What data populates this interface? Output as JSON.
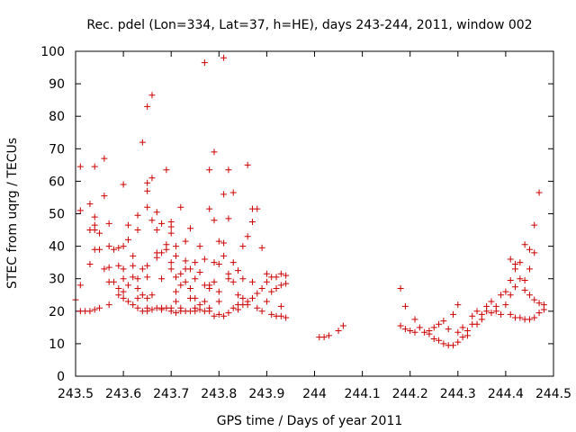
{
  "chart_data": {
    "type": "scatter",
    "title": "Rec. pdel (Lon=334, Lat=37, h=HE), days 243-244, 2011, window 002",
    "xlabel": "GPS time / Days of year 2011",
    "ylabel": "STEC from uqrg / TECUs",
    "xlim": [
      243.5,
      244.5
    ],
    "ylim": [
      0,
      100
    ],
    "xticks": [
      "243.5",
      "243.6",
      "243.7",
      "243.8",
      "243.9",
      "244",
      "244.1",
      "244.2",
      "244.3",
      "244.4",
      "244.5"
    ],
    "yticks": [
      "0",
      "10",
      "20",
      "30",
      "40",
      "50",
      "60",
      "70",
      "80",
      "90",
      "100"
    ],
    "grid": false,
    "legend": "none",
    "marker": "+",
    "color": "#cc0000",
    "series": [
      {
        "points": [
          [
            243.5,
            23.5
          ],
          [
            243.51,
            20
          ],
          [
            243.51,
            28
          ],
          [
            243.51,
            51
          ],
          [
            243.51,
            64.5
          ],
          [
            243.52,
            20
          ],
          [
            243.53,
            20
          ],
          [
            243.53,
            34.5
          ],
          [
            243.53,
            45
          ],
          [
            243.53,
            53
          ],
          [
            243.54,
            20.5
          ],
          [
            243.54,
            39
          ],
          [
            243.54,
            45
          ],
          [
            243.54,
            46.5
          ],
          [
            243.54,
            49
          ],
          [
            243.54,
            64.5
          ],
          [
            243.55,
            21
          ],
          [
            243.55,
            39
          ],
          [
            243.55,
            44
          ],
          [
            243.56,
            33
          ],
          [
            243.56,
            55.5
          ],
          [
            243.56,
            67
          ],
          [
            243.57,
            22
          ],
          [
            243.57,
            29
          ],
          [
            243.57,
            33.5
          ],
          [
            243.57,
            40
          ],
          [
            243.57,
            47
          ],
          [
            243.58,
            29
          ],
          [
            243.58,
            39
          ],
          [
            243.59,
            25
          ],
          [
            243.59,
            27
          ],
          [
            243.59,
            34
          ],
          [
            243.59,
            39.5
          ],
          [
            243.6,
            24
          ],
          [
            243.6,
            26
          ],
          [
            243.6,
            30
          ],
          [
            243.6,
            33
          ],
          [
            243.6,
            40
          ],
          [
            243.6,
            59
          ],
          [
            243.61,
            23
          ],
          [
            243.61,
            28
          ],
          [
            243.61,
            42
          ],
          [
            243.61,
            46.5
          ],
          [
            243.62,
            22
          ],
          [
            243.62,
            30.5
          ],
          [
            243.62,
            34
          ],
          [
            243.62,
            37
          ],
          [
            243.63,
            21
          ],
          [
            243.63,
            24
          ],
          [
            243.63,
            27
          ],
          [
            243.63,
            30
          ],
          [
            243.63,
            45
          ],
          [
            243.63,
            49.5
          ],
          [
            243.64,
            20
          ],
          [
            243.64,
            25
          ],
          [
            243.64,
            33
          ],
          [
            243.64,
            72
          ],
          [
            243.65,
            20
          ],
          [
            243.65,
            21
          ],
          [
            243.65,
            24
          ],
          [
            243.65,
            30.5
          ],
          [
            243.65,
            34
          ],
          [
            243.65,
            52
          ],
          [
            243.65,
            57
          ],
          [
            243.65,
            59.5
          ],
          [
            243.65,
            83
          ],
          [
            243.66,
            20.5
          ],
          [
            243.66,
            25
          ],
          [
            243.66,
            48
          ],
          [
            243.66,
            61
          ],
          [
            243.66,
            86.5
          ],
          [
            243.67,
            21
          ],
          [
            243.67,
            36.5
          ],
          [
            243.67,
            38
          ],
          [
            243.67,
            45
          ],
          [
            243.67,
            50.5
          ],
          [
            243.68,
            20.5
          ],
          [
            243.68,
            21
          ],
          [
            243.68,
            30
          ],
          [
            243.68,
            38
          ],
          [
            243.68,
            47
          ],
          [
            243.69,
            21
          ],
          [
            243.69,
            39
          ],
          [
            243.69,
            40.5
          ],
          [
            243.69,
            63.5
          ],
          [
            243.7,
            20
          ],
          [
            243.7,
            21
          ],
          [
            243.7,
            33
          ],
          [
            243.7,
            35
          ],
          [
            243.7,
            44
          ],
          [
            243.7,
            46
          ],
          [
            243.7,
            47.5
          ],
          [
            243.71,
            19.5
          ],
          [
            243.71,
            23
          ],
          [
            243.71,
            26
          ],
          [
            243.71,
            30.5
          ],
          [
            243.71,
            37
          ],
          [
            243.71,
            40
          ],
          [
            243.72,
            20
          ],
          [
            243.72,
            21
          ],
          [
            243.72,
            28
          ],
          [
            243.72,
            31.5
          ],
          [
            243.72,
            52
          ],
          [
            243.73,
            20
          ],
          [
            243.73,
            29
          ],
          [
            243.73,
            33
          ],
          [
            243.73,
            35.5
          ],
          [
            243.73,
            41.5
          ],
          [
            243.74,
            20
          ],
          [
            243.74,
            24
          ],
          [
            243.74,
            27
          ],
          [
            243.74,
            33
          ],
          [
            243.74,
            45.5
          ],
          [
            243.75,
            20
          ],
          [
            243.75,
            21
          ],
          [
            243.75,
            24
          ],
          [
            243.75,
            30
          ],
          [
            243.75,
            35
          ],
          [
            243.76,
            20.5
          ],
          [
            243.76,
            22
          ],
          [
            243.76,
            32
          ],
          [
            243.76,
            40
          ],
          [
            243.77,
            20
          ],
          [
            243.77,
            23
          ],
          [
            243.77,
            28
          ],
          [
            243.77,
            36
          ],
          [
            243.77,
            96.5
          ],
          [
            243.78,
            20
          ],
          [
            243.78,
            21
          ],
          [
            243.78,
            27
          ],
          [
            243.78,
            28
          ],
          [
            243.78,
            51.5
          ],
          [
            243.78,
            63.5
          ],
          [
            243.79,
            18.5
          ],
          [
            243.79,
            29
          ],
          [
            243.79,
            35
          ],
          [
            243.79,
            48
          ],
          [
            243.79,
            69
          ],
          [
            243.8,
            19
          ],
          [
            243.8,
            23
          ],
          [
            243.8,
            26
          ],
          [
            243.8,
            34.5
          ],
          [
            243.8,
            41.5
          ],
          [
            243.81,
            18.5
          ],
          [
            243.81,
            37
          ],
          [
            243.81,
            41
          ],
          [
            243.81,
            56
          ],
          [
            243.81,
            98
          ],
          [
            243.82,
            19.5
          ],
          [
            243.82,
            30
          ],
          [
            243.82,
            31.5
          ],
          [
            243.82,
            48.5
          ],
          [
            243.82,
            63.5
          ],
          [
            243.83,
            21
          ],
          [
            243.83,
            29
          ],
          [
            243.83,
            35
          ],
          [
            243.83,
            56.5
          ],
          [
            243.84,
            20.5
          ],
          [
            243.84,
            22
          ],
          [
            243.84,
            25
          ],
          [
            243.84,
            32.5
          ],
          [
            243.85,
            22
          ],
          [
            243.85,
            24
          ],
          [
            243.85,
            30
          ],
          [
            243.85,
            40
          ],
          [
            243.86,
            22
          ],
          [
            243.86,
            23
          ],
          [
            243.86,
            43
          ],
          [
            243.86,
            65
          ],
          [
            243.87,
            24
          ],
          [
            243.87,
            29
          ],
          [
            243.87,
            47.5
          ],
          [
            243.87,
            51.5
          ],
          [
            243.88,
            21
          ],
          [
            243.88,
            25.5
          ],
          [
            243.88,
            51.5
          ],
          [
            243.89,
            20
          ],
          [
            243.89,
            27
          ],
          [
            243.89,
            39.5
          ],
          [
            243.9,
            23
          ],
          [
            243.9,
            29
          ],
          [
            243.9,
            31.5
          ],
          [
            243.91,
            19
          ],
          [
            243.91,
            26
          ],
          [
            243.91,
            30.5
          ],
          [
            243.92,
            18.5
          ],
          [
            243.92,
            27
          ],
          [
            243.92,
            30.5
          ],
          [
            243.93,
            18.5
          ],
          [
            243.93,
            21.5
          ],
          [
            243.93,
            28
          ],
          [
            243.93,
            31.5
          ],
          [
            243.94,
            18
          ],
          [
            243.94,
            28.5
          ],
          [
            243.94,
            31
          ],
          [
            244.01,
            12
          ],
          [
            244.02,
            12
          ],
          [
            244.03,
            12.5
          ],
          [
            244.05,
            14
          ],
          [
            244.06,
            15.5
          ],
          [
            244.18,
            27
          ],
          [
            244.18,
            15.5
          ],
          [
            244.19,
            14.5
          ],
          [
            244.19,
            21.5
          ],
          [
            244.2,
            14
          ],
          [
            244.21,
            17.5
          ],
          [
            244.21,
            13.5
          ],
          [
            244.22,
            15
          ],
          [
            244.23,
            13.5
          ],
          [
            244.24,
            13
          ],
          [
            244.24,
            14
          ],
          [
            244.25,
            11.5
          ],
          [
            244.25,
            15
          ],
          [
            244.26,
            11
          ],
          [
            244.26,
            16
          ],
          [
            244.27,
            10
          ],
          [
            244.27,
            17
          ],
          [
            244.28,
            9.5
          ],
          [
            244.28,
            14.5
          ],
          [
            244.29,
            9.5
          ],
          [
            244.29,
            19
          ],
          [
            244.3,
            10.5
          ],
          [
            244.3,
            13.5
          ],
          [
            244.3,
            22
          ],
          [
            244.31,
            12
          ],
          [
            244.31,
            15
          ],
          [
            244.32,
            12.5
          ],
          [
            244.32,
            14
          ],
          [
            244.33,
            16
          ],
          [
            244.33,
            18.5
          ],
          [
            244.34,
            16
          ],
          [
            244.34,
            20
          ],
          [
            244.35,
            17.5
          ],
          [
            244.35,
            19
          ],
          [
            244.36,
            20
          ],
          [
            244.36,
            21.5
          ],
          [
            244.37,
            19.5
          ],
          [
            244.37,
            23
          ],
          [
            244.38,
            20
          ],
          [
            244.38,
            21.5
          ],
          [
            244.39,
            19
          ],
          [
            244.39,
            25
          ],
          [
            244.4,
            22
          ],
          [
            244.4,
            26
          ],
          [
            244.41,
            19
          ],
          [
            244.41,
            25
          ],
          [
            244.41,
            29.5
          ],
          [
            244.41,
            36
          ],
          [
            244.42,
            18
          ],
          [
            244.42,
            27.5
          ],
          [
            244.42,
            33
          ],
          [
            244.42,
            34.5
          ],
          [
            244.43,
            18
          ],
          [
            244.43,
            30
          ],
          [
            244.43,
            35
          ],
          [
            244.44,
            17.5
          ],
          [
            244.44,
            26.5
          ],
          [
            244.44,
            29.5
          ],
          [
            244.44,
            40.5
          ],
          [
            244.45,
            17.5
          ],
          [
            244.45,
            25
          ],
          [
            244.45,
            33
          ],
          [
            244.45,
            39
          ],
          [
            244.46,
            18
          ],
          [
            244.46,
            23.5
          ],
          [
            244.46,
            38
          ],
          [
            244.46,
            46.5
          ],
          [
            244.47,
            19.5
          ],
          [
            244.47,
            22.5
          ],
          [
            244.47,
            56.5
          ],
          [
            244.48,
            22
          ],
          [
            244.48,
            20.5
          ]
        ]
      }
    ]
  }
}
